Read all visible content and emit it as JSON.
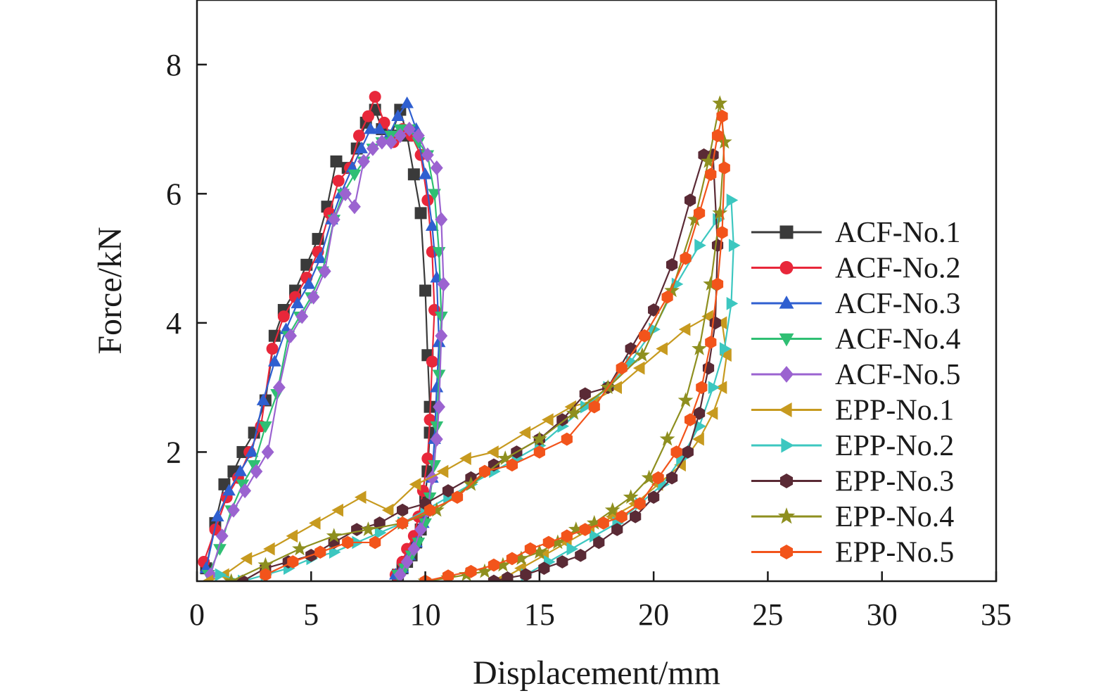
{
  "chart_data": {
    "type": "line",
    "title": "",
    "xlabel": "Displacement/mm",
    "ylabel": "Force/kN",
    "xlim": [
      0,
      35
    ],
    "ylim": [
      0,
      9
    ],
    "xticks": [
      0,
      5,
      10,
      15,
      20,
      25,
      30,
      35
    ],
    "yticks": [
      2,
      4,
      6,
      8
    ],
    "xtick_labels": [
      "0",
      "5",
      "10",
      "15",
      "20",
      "25",
      "30",
      "35"
    ],
    "ytick_labels": [
      "2",
      "4",
      "6",
      "8"
    ],
    "grid": false,
    "legend_position": "right",
    "series": [
      {
        "name": "ACF-No.1",
        "color": "#3a3a3a",
        "marker": "square",
        "x": [
          0.4,
          0.8,
          1.2,
          1.6,
          2.0,
          2.5,
          3.0,
          3.4,
          3.8,
          4.3,
          4.8,
          5.3,
          5.7,
          6.1,
          6.6,
          7.0,
          7.4,
          7.8,
          8.1,
          8.5,
          8.9,
          9.2,
          9.5,
          9.8,
          10.0,
          10.1,
          10.2,
          10.2,
          10.1,
          10.0,
          9.9,
          9.8,
          9.6,
          9.4,
          9.2,
          9.0,
          8.8
        ],
        "y": [
          0.2,
          0.9,
          1.5,
          1.7,
          2.0,
          2.3,
          2.8,
          3.8,
          4.2,
          4.5,
          4.9,
          5.3,
          5.8,
          6.5,
          6.4,
          6.7,
          7.1,
          7.3,
          7.0,
          6.9,
          7.3,
          6.9,
          6.3,
          5.7,
          4.5,
          3.5,
          2.7,
          2.3,
          1.7,
          1.3,
          1.0,
          0.8,
          0.6,
          0.4,
          0.3,
          0.2,
          0.1
        ]
      },
      {
        "name": "ACF-No.2",
        "color": "#e8273a",
        "marker": "circle",
        "x": [
          0.3,
          0.8,
          1.3,
          1.8,
          2.3,
          2.8,
          3.3,
          3.8,
          4.3,
          4.8,
          5.3,
          5.8,
          6.2,
          6.7,
          7.1,
          7.5,
          7.8,
          8.2,
          8.6,
          9.0,
          9.4,
          9.8,
          10.1,
          10.3,
          10.4,
          10.3,
          10.2,
          10.1,
          9.9,
          9.7,
          9.5,
          9.2,
          9.0,
          8.7
        ],
        "y": [
          0.3,
          0.8,
          1.3,
          1.6,
          2.0,
          2.4,
          3.6,
          4.1,
          4.4,
          4.7,
          5.1,
          5.7,
          6.2,
          6.4,
          6.9,
          7.2,
          7.5,
          7.1,
          6.8,
          7.0,
          6.9,
          6.6,
          5.9,
          5.1,
          4.2,
          3.4,
          2.5,
          1.9,
          1.4,
          1.0,
          0.7,
          0.5,
          0.3,
          0.1
        ]
      },
      {
        "name": "ACF-No.3",
        "color": "#2f5fd0",
        "marker": "triangle-up",
        "x": [
          0.4,
          0.9,
          1.4,
          1.9,
          2.4,
          2.9,
          3.4,
          3.9,
          4.4,
          4.9,
          5.4,
          5.9,
          6.3,
          6.8,
          7.2,
          7.6,
          8.0,
          8.4,
          8.8,
          9.2,
          9.6,
          10.0,
          10.3,
          10.5,
          10.6,
          10.5,
          10.4,
          10.3,
          10.1,
          9.9,
          9.6,
          9.3,
          9.0,
          8.7
        ],
        "y": [
          0.2,
          1.0,
          1.4,
          1.7,
          2.0,
          2.8,
          3.4,
          3.9,
          4.3,
          4.6,
          5.0,
          5.6,
          6.0,
          6.4,
          6.7,
          7.0,
          7.0,
          6.9,
          7.2,
          7.4,
          7.0,
          6.3,
          5.5,
          4.7,
          3.7,
          3.0,
          2.2,
          1.6,
          1.2,
          0.9,
          0.6,
          0.4,
          0.2,
          0.1
        ]
      },
      {
        "name": "ACF-No.4",
        "color": "#2fbf73",
        "marker": "triangle-down",
        "x": [
          0.5,
          1.0,
          1.5,
          2.0,
          2.5,
          3.0,
          3.5,
          4.0,
          4.5,
          5.0,
          5.5,
          6.0,
          6.4,
          6.9,
          7.3,
          7.7,
          8.1,
          8.5,
          8.9,
          9.3,
          9.7,
          10.1,
          10.4,
          10.6,
          10.7,
          10.6,
          10.5,
          10.4,
          10.2,
          10.0,
          9.7,
          9.4,
          9.1,
          8.8
        ],
        "y": [
          0.1,
          0.5,
          1.1,
          1.5,
          1.8,
          2.4,
          2.9,
          3.8,
          4.1,
          4.4,
          4.8,
          5.6,
          6.0,
          6.3,
          6.5,
          6.7,
          6.8,
          6.9,
          7.0,
          7.0,
          6.8,
          6.6,
          6.0,
          5.1,
          4.1,
          3.2,
          2.4,
          1.8,
          1.3,
          0.9,
          0.6,
          0.4,
          0.2,
          0.1
        ]
      },
      {
        "name": "ACF-No.5",
        "color": "#9b63d0",
        "marker": "diamond",
        "x": [
          0.6,
          1.1,
          1.6,
          2.1,
          2.6,
          3.1,
          3.6,
          4.1,
          4.6,
          5.1,
          5.6,
          6.0,
          6.5,
          6.9,
          7.3,
          7.7,
          8.1,
          8.5,
          8.9,
          9.3,
          9.7,
          10.1,
          10.5,
          10.7,
          10.8,
          10.7,
          10.6,
          10.5,
          10.3,
          10.1,
          9.8,
          9.5,
          9.2,
          8.9
        ],
        "y": [
          0.1,
          0.7,
          1.1,
          1.4,
          1.7,
          2.0,
          3.0,
          3.8,
          4.1,
          4.4,
          4.8,
          5.6,
          6.0,
          5.8,
          6.5,
          6.7,
          6.8,
          6.8,
          6.9,
          7.0,
          6.9,
          6.6,
          6.4,
          5.6,
          4.6,
          3.8,
          2.7,
          2.2,
          1.6,
          1.1,
          0.8,
          0.5,
          0.3,
          0.1
        ]
      },
      {
        "name": "EPP-No.1",
        "color": "#c79a1f",
        "marker": "triangle-left",
        "x": [
          0.5,
          1.2,
          2.2,
          3.2,
          4.2,
          5.2,
          6.2,
          7.2,
          8.4,
          9.6,
          10.8,
          11.8,
          13.0,
          14.4,
          15.4,
          16.4,
          17.4,
          18.4,
          19.4,
          20.4,
          21.4,
          22.4,
          23.0,
          23.2,
          23.0,
          22.6,
          22.0,
          21.2,
          20.2,
          19.2,
          18.2,
          17.2,
          16.2,
          15.2,
          14.2,
          13.2
        ],
        "y": [
          0.0,
          0.1,
          0.35,
          0.5,
          0.7,
          0.9,
          1.1,
          1.3,
          1.1,
          1.5,
          1.7,
          1.9,
          2.0,
          2.3,
          2.5,
          2.7,
          2.8,
          3.0,
          3.3,
          3.6,
          3.9,
          4.1,
          4.0,
          3.5,
          3.0,
          2.6,
          2.2,
          1.8,
          1.5,
          1.2,
          1.0,
          0.8,
          0.6,
          0.4,
          0.2,
          0.0
        ]
      },
      {
        "name": "EPP-No.2",
        "color": "#3cc7c0",
        "marker": "triangle-right",
        "x": [
          1.0,
          2.0,
          3.0,
          4.0,
          5.0,
          6.0,
          7.0,
          8.0,
          9.0,
          10.0,
          11.0,
          12.0,
          13.0,
          14.0,
          15.0,
          16.0,
          17.0,
          18.0,
          19.0,
          20.0,
          21.0,
          22.0,
          22.8,
          23.4,
          23.5,
          23.4,
          23.1,
          22.6,
          22.0,
          21.2,
          20.4,
          19.4,
          18.4,
          17.4,
          16.4,
          15.4,
          14.4
        ],
        "y": [
          0.1,
          0.0,
          0.1,
          0.2,
          0.35,
          0.45,
          0.6,
          0.75,
          0.9,
          1.1,
          1.3,
          1.5,
          1.7,
          1.9,
          2.1,
          2.4,
          2.7,
          3.0,
          3.4,
          3.9,
          4.6,
          5.2,
          5.6,
          5.9,
          5.2,
          4.3,
          3.6,
          3.0,
          2.4,
          1.9,
          1.5,
          1.2,
          0.9,
          0.7,
          0.5,
          0.3,
          0.1
        ]
      },
      {
        "name": "EPP-No.3",
        "color": "#5a2a35",
        "marker": "hexagon",
        "x": [
          2.0,
          3.0,
          4.0,
          5.0,
          6.0,
          7.0,
          8.0,
          9.0,
          10.0,
          11.0,
          12.0,
          13.0,
          14.0,
          15.0,
          16.0,
          17.0,
          18.0,
          19.0,
          20.0,
          20.8,
          21.6,
          22.2,
          22.6,
          22.8,
          22.7,
          22.4,
          22.0,
          21.5,
          20.8,
          20.0,
          19.2,
          18.4,
          17.6,
          16.8,
          16.0,
          15.2,
          14.4,
          13.6,
          13.0
        ],
        "y": [
          0.0,
          0.2,
          0.3,
          0.4,
          0.6,
          0.8,
          0.9,
          1.1,
          1.2,
          1.4,
          1.6,
          1.8,
          2.0,
          2.2,
          2.5,
          2.9,
          3.0,
          3.6,
          4.2,
          4.9,
          5.9,
          6.6,
          6.6,
          5.2,
          4.0,
          3.3,
          2.6,
          2.0,
          1.6,
          1.3,
          1.0,
          0.8,
          0.6,
          0.4,
          0.3,
          0.2,
          0.1,
          0.05,
          0.0
        ]
      },
      {
        "name": "EPP-No.4",
        "color": "#8e8f1f",
        "marker": "star",
        "x": [
          1.5,
          3.0,
          4.5,
          6.0,
          7.5,
          9.0,
          10.5,
          12.0,
          13.5,
          15.0,
          16.5,
          18.0,
          19.5,
          20.8,
          21.8,
          22.4,
          22.9,
          23.1,
          22.9,
          22.5,
          22.0,
          21.4,
          20.6,
          19.8,
          19.0,
          18.2,
          17.4,
          16.6,
          15.8,
          15.0,
          14.2,
          13.4,
          12.6,
          11.8,
          11.0,
          10.0
        ],
        "y": [
          0.0,
          0.25,
          0.5,
          0.7,
          0.8,
          0.9,
          1.1,
          1.5,
          1.9,
          2.2,
          2.6,
          3.0,
          3.5,
          4.5,
          5.6,
          6.5,
          7.4,
          6.8,
          5.7,
          4.6,
          3.6,
          2.8,
          2.2,
          1.6,
          1.3,
          1.1,
          0.9,
          0.8,
          0.6,
          0.45,
          0.35,
          0.25,
          0.15,
          0.1,
          0.05,
          0.0
        ]
      },
      {
        "name": "EPP-No.5",
        "color": "#f2541b",
        "marker": "hexagon",
        "x": [
          3.0,
          4.2,
          5.4,
          6.6,
          7.8,
          9.0,
          10.2,
          11.4,
          12.6,
          13.8,
          15.0,
          16.2,
          17.4,
          18.6,
          19.6,
          20.6,
          21.4,
          22.0,
          22.5,
          22.8,
          23.0,
          23.1,
          23.0,
          22.8,
          22.5,
          22.1,
          21.6,
          21.0,
          20.2,
          19.4,
          18.6,
          17.8,
          17.0,
          16.2,
          15.4,
          14.6,
          13.8,
          13.0,
          12.0,
          11.0,
          10.0
        ],
        "y": [
          0.1,
          0.3,
          0.45,
          0.6,
          0.6,
          0.9,
          1.1,
          1.3,
          1.7,
          1.8,
          2.0,
          2.2,
          2.7,
          3.3,
          3.8,
          4.4,
          5.0,
          5.7,
          6.3,
          6.9,
          7.2,
          6.4,
          5.4,
          4.6,
          3.7,
          3.0,
          2.5,
          2.0,
          1.6,
          1.2,
          1.0,
          0.9,
          0.8,
          0.7,
          0.6,
          0.5,
          0.35,
          0.25,
          0.15,
          0.08,
          0.0
        ]
      }
    ]
  }
}
